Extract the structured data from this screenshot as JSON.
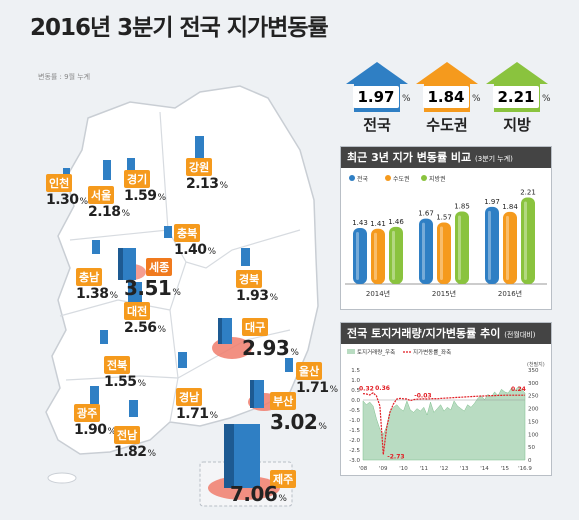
{
  "title": "2016년 3분기 전국 지가변동률",
  "unit_note": "변동률 : 9월 누계",
  "colors": {
    "orange": "#f59a1d",
    "blue": "#2f7fc4",
    "green": "#8ac33e",
    "red": "#e11b22",
    "salmon": "#f07c6c"
  },
  "kpis": [
    {
      "label": "전국",
      "value": "1.97",
      "pct": "%",
      "color": "#2f7fc4"
    },
    {
      "label": "수도권",
      "value": "1.84",
      "pct": "%",
      "color": "#f59a1d"
    },
    {
      "label": "지방",
      "value": "2.21",
      "pct": "%",
      "color": "#8ac33e"
    }
  ],
  "regions": [
    {
      "name": "인천",
      "value": "1.30"
    },
    {
      "name": "서울",
      "value": "2.18"
    },
    {
      "name": "경기",
      "value": "1.59"
    },
    {
      "name": "강원",
      "value": "2.13"
    },
    {
      "name": "충북",
      "value": "1.40"
    },
    {
      "name": "충남",
      "value": "1.38"
    },
    {
      "name": "세종",
      "value": "3.51"
    },
    {
      "name": "대전",
      "value": "2.56"
    },
    {
      "name": "경북",
      "value": "1.93"
    },
    {
      "name": "대구",
      "value": "2.93"
    },
    {
      "name": "전북",
      "value": "1.55"
    },
    {
      "name": "울산",
      "value": "1.71"
    },
    {
      "name": "경남",
      "value": "1.71"
    },
    {
      "name": "부산",
      "value": "3.02"
    },
    {
      "name": "광주",
      "value": "1.90"
    },
    {
      "name": "전남",
      "value": "1.82"
    },
    {
      "name": "제주",
      "value": "7.06"
    }
  ],
  "pct": "%",
  "chart_data": [
    {
      "type": "bar",
      "title": "최근 3년 지가 변동률 비교",
      "subtitle": "(3분기 누계)",
      "legend": [
        "전국",
        "수도권",
        "지방권"
      ],
      "legend_position": "top-left",
      "categories": [
        "2014년",
        "2015년",
        "2016년"
      ],
      "series": [
        {
          "name": "전국",
          "values": [
            1.43,
            1.67,
            1.97
          ],
          "color": "#2f7fc4"
        },
        {
          "name": "수도권",
          "values": [
            1.41,
            1.57,
            1.84
          ],
          "color": "#f59a1d"
        },
        {
          "name": "지방권",
          "values": [
            1.46,
            1.85,
            2.21
          ],
          "color": "#8ac33e"
        }
      ],
      "value_labels": [
        "1.43",
        "1.41",
        "1.46",
        "1.67",
        "1.57",
        "1.85",
        "1.97",
        "1.84",
        "2.21"
      ],
      "ylim": [
        0,
        2.4
      ]
    },
    {
      "type": "area",
      "title": "전국 토지거래량/지가변동률 추이",
      "subtitle": "(전월대비)",
      "legend": [
        "토지거래량_우축",
        "지가변동률_좌축"
      ],
      "right_axis_unit": "(천필지)",
      "x_ticks": [
        "'08",
        "'09",
        "'10",
        "'11",
        "'12",
        "'13",
        "'14",
        "'15",
        "'16.9"
      ],
      "y_left_ticks": [
        "1.5",
        "1.0",
        "0.5",
        "0.0",
        "-0.5",
        "-1.0",
        "-1.5",
        "-2.0",
        "-2.5",
        "-3.0"
      ],
      "y_right_ticks": [
        "350",
        "300",
        "250",
        "200",
        "150",
        "100",
        "50",
        "0"
      ],
      "ylim_left": [
        -3.0,
        1.5
      ],
      "ylim_right": [
        0,
        350
      ],
      "annotations": [
        "0.32",
        "0.36",
        "-2.73",
        "-0.03",
        "0.24"
      ],
      "volume_series": [
        230,
        215,
        225,
        210,
        160,
        120,
        100,
        130,
        190,
        205,
        215,
        200,
        190,
        230,
        195,
        185,
        200,
        190,
        205,
        175,
        225,
        185,
        200,
        215,
        190,
        205,
        195,
        230,
        210,
        200,
        190,
        215,
        205,
        220,
        240,
        250,
        235,
        255,
        245,
        265,
        250,
        275,
        265,
        260,
        280,
        270,
        285,
        275,
        260
      ],
      "rate_series": [
        0.32,
        0.3,
        0.25,
        0.36,
        0.2,
        -0.3,
        -2.73,
        -1.4,
        -0.6,
        -0.2,
        0.05,
        0.08,
        0.06,
        0.05,
        -0.03,
        0.02,
        0.04,
        0.05,
        0.06,
        0.05,
        0.06,
        0.07,
        0.06,
        0.08,
        0.09,
        0.1,
        0.11,
        0.12,
        0.13,
        0.14,
        0.15,
        0.16,
        0.17,
        0.18,
        0.19,
        0.2,
        0.2,
        0.21,
        0.22,
        0.22,
        0.23,
        0.23,
        0.24,
        0.24,
        0.24,
        0.24,
        0.24,
        0.24,
        0.24
      ]
    }
  ]
}
